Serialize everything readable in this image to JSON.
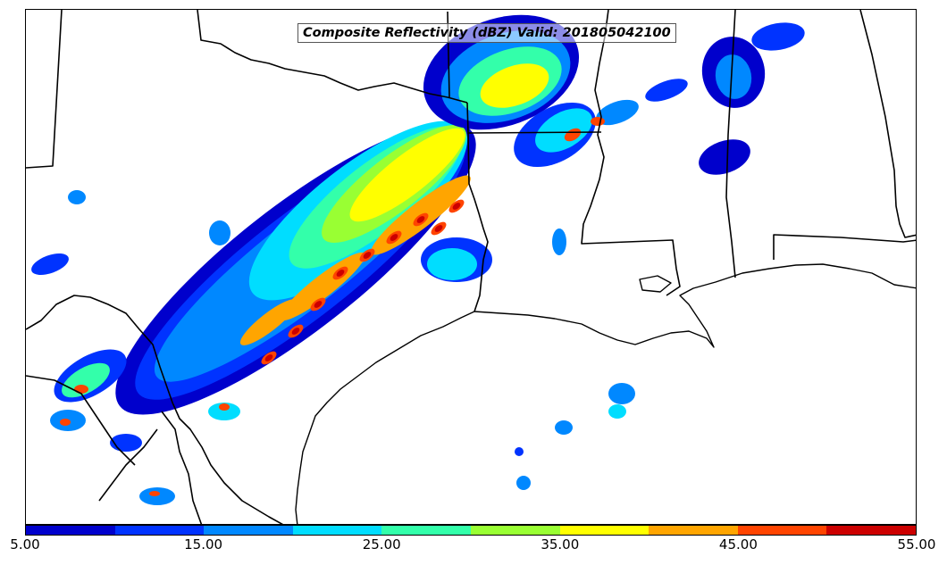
{
  "map": {
    "title": "Composite Reflectivity (dBZ) Valid: 201805042100",
    "field": "Composite Reflectivity",
    "units": "dBZ",
    "valid_time": "201805042100"
  },
  "colorbar": {
    "colors": [
      "#0000cc",
      "#0033ff",
      "#0088ff",
      "#00ddff",
      "#33ffaa",
      "#99ff33",
      "#ffff00",
      "#ffa500",
      "#ff4400",
      "#cc0000"
    ],
    "tick_labels": [
      "5.00",
      "15.00",
      "25.00",
      "35.00",
      "45.00",
      "55.00"
    ],
    "min": 5,
    "max": 55,
    "interval": 5
  }
}
